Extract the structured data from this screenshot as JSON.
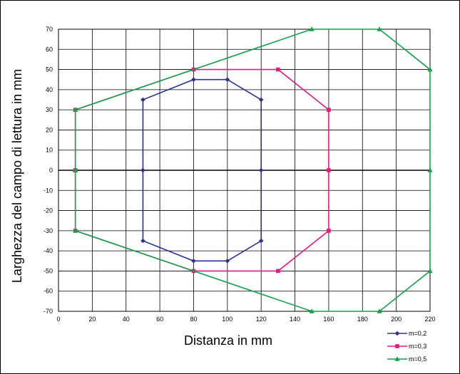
{
  "chart_data": {
    "type": "line",
    "xlabel": "Distanza in mm",
    "ylabel": "Larghezza del campo di lettura in mm",
    "xlim": [
      0,
      220
    ],
    "ylim": [
      -70,
      70
    ],
    "x_ticks": [
      0,
      20,
      40,
      60,
      80,
      100,
      120,
      140,
      160,
      180,
      200,
      220
    ],
    "y_ticks": [
      70,
      60,
      50,
      40,
      30,
      20,
      10,
      0,
      -10,
      -20,
      -30,
      -40,
      -50,
      -60,
      -70
    ],
    "grid": true,
    "legend_position": "bottom-right",
    "series": [
      {
        "name": "m=0,2",
        "color": "#2e3192",
        "marker": "diamond",
        "points": [
          [
            50,
            0
          ],
          [
            50,
            35
          ],
          [
            80,
            45
          ],
          [
            100,
            45
          ],
          [
            120,
            35
          ],
          [
            120,
            0
          ],
          [
            120,
            -35
          ],
          [
            100,
            -45
          ],
          [
            80,
            -45
          ],
          [
            50,
            -35
          ],
          [
            50,
            0
          ]
        ]
      },
      {
        "name": "m=0,3",
        "color": "#e6197f",
        "marker": "square",
        "points": [
          [
            10,
            0
          ],
          [
            10,
            30
          ],
          [
            80,
            50
          ],
          [
            130,
            50
          ],
          [
            160,
            30
          ],
          [
            160,
            0
          ],
          [
            160,
            -30
          ],
          [
            130,
            -50
          ],
          [
            80,
            -50
          ],
          [
            10,
            -30
          ],
          [
            10,
            0
          ]
        ]
      },
      {
        "name": "m=0,5",
        "color": "#13a14a",
        "marker": "triangle",
        "points": [
          [
            10,
            0
          ],
          [
            10,
            30
          ],
          [
            150,
            70
          ],
          [
            190,
            70
          ],
          [
            220,
            50
          ],
          [
            220,
            0
          ],
          [
            220,
            -50
          ],
          [
            190,
            -70
          ],
          [
            150,
            -70
          ],
          [
            10,
            -30
          ],
          [
            10,
            0
          ]
        ]
      }
    ]
  }
}
